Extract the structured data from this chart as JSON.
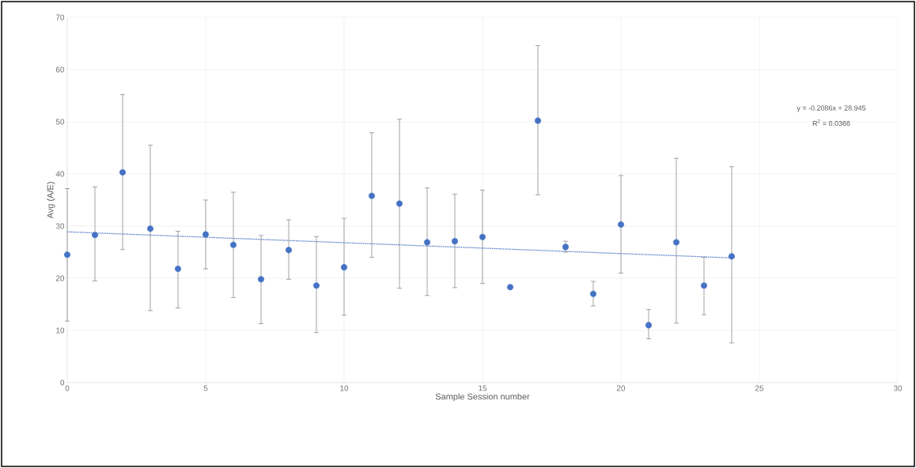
{
  "chart_data": {
    "type": "scatter",
    "xlabel": "Sample Session number",
    "ylabel": "Avg (A/E)",
    "x": [
      0,
      1,
      2,
      3,
      4,
      5,
      6,
      7,
      8,
      9,
      10,
      11,
      12,
      13,
      14,
      15,
      16,
      17,
      18,
      19,
      20,
      21,
      22,
      23,
      24
    ],
    "series": [
      {
        "color": "#4472c4",
        "marker": "circle",
        "values": [
          24.5,
          28.3,
          40.3,
          29.5,
          21.8,
          28.4,
          26.4,
          19.8,
          25.4,
          18.6,
          22.1,
          35.8,
          34.3,
          26.9,
          27.1,
          27.9,
          18.3,
          50.2,
          26.0,
          17.0,
          30.3,
          11.0,
          26.9,
          18.6,
          24.2
        ],
        "errors": [
          [
            11.8,
            37.2
          ],
          [
            19.5,
            37.5
          ],
          [
            25.5,
            55.2
          ],
          [
            13.8,
            45.5
          ],
          [
            14.3,
            29.0
          ],
          [
            21.8,
            35.0
          ],
          [
            16.3,
            36.5
          ],
          [
            11.3,
            28.2
          ],
          [
            19.8,
            31.2
          ],
          [
            9.6,
            28.0
          ],
          [
            12.9,
            31.5
          ],
          [
            24.0,
            47.9
          ],
          [
            18.1,
            50.5
          ],
          [
            16.7,
            37.3
          ],
          [
            18.2,
            36.1
          ],
          [
            19.0,
            36.9
          ],
          null,
          [
            36.0,
            64.6
          ],
          [
            25.0,
            27.1
          ],
          [
            14.7,
            19.4
          ],
          [
            21.0,
            39.7
          ],
          [
            8.4,
            14.0
          ],
          [
            11.4,
            43.0
          ],
          [
            13.0,
            24.0
          ],
          [
            7.6,
            41.4
          ]
        ]
      },
      {
        "type": "line",
        "color": "#4472c4",
        "line_style": "dotted",
        "marker": "none",
        "x": [
          0,
          24
        ],
        "values": [
          28.9,
          23.9
        ]
      }
    ],
    "xlim": [
      0,
      30
    ],
    "xticks": [
      0,
      5,
      10,
      15,
      20,
      25,
      30
    ],
    "ylim": [
      0,
      70
    ],
    "yticks": [
      0,
      10,
      20,
      30,
      40,
      50,
      60,
      70
    ],
    "grid": true,
    "annotations": [
      "y = -0.2086x + 28.945",
      "R$^{2}$ = 0.0366"
    ]
  }
}
